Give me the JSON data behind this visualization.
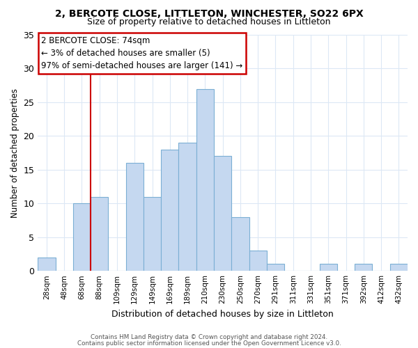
{
  "title": "2, BERCOTE CLOSE, LITTLETON, WINCHESTER, SO22 6PX",
  "subtitle": "Size of property relative to detached houses in Littleton",
  "xlabel": "Distribution of detached houses by size in Littleton",
  "ylabel": "Number of detached properties",
  "bin_labels": [
    "28sqm",
    "48sqm",
    "68sqm",
    "88sqm",
    "109sqm",
    "129sqm",
    "149sqm",
    "169sqm",
    "189sqm",
    "210sqm",
    "230sqm",
    "250sqm",
    "270sqm",
    "291sqm",
    "311sqm",
    "331sqm",
    "351sqm",
    "371sqm",
    "392sqm",
    "412sqm",
    "432sqm"
  ],
  "bar_values": [
    2,
    0,
    10,
    11,
    0,
    16,
    11,
    18,
    19,
    27,
    17,
    8,
    3,
    1,
    0,
    0,
    1,
    0,
    1,
    0,
    1
  ],
  "bar_color": "#c5d8f0",
  "bar_edge_color": "#7bafd4",
  "reference_line_x": 2.5,
  "reference_line_color": "#cc0000",
  "ylim": [
    0,
    35
  ],
  "yticks": [
    0,
    5,
    10,
    15,
    20,
    25,
    30,
    35
  ],
  "annotation_text": "2 BERCOTE CLOSE: 74sqm\n← 3% of detached houses are smaller (5)\n97% of semi-detached houses are larger (141) →",
  "annotation_box_color": "#ffffff",
  "annotation_box_edge": "#cc0000",
  "footer_line1": "Contains HM Land Registry data © Crown copyright and database right 2024.",
  "footer_line2": "Contains public sector information licensed under the Open Government Licence v3.0.",
  "background_color": "#ffffff",
  "grid_color": "#dce8f5"
}
